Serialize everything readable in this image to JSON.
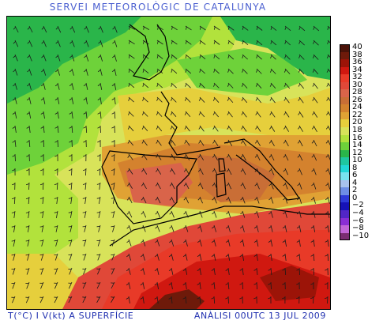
{
  "header": {
    "title": "SERVEI METEOROLÒGIC DE CATALUNYA"
  },
  "footer": {
    "left": "T(°C) I V(kt) A SUPERFÍCIE",
    "right": "ANÀLISI 00UTC 13 JUL 2009"
  },
  "legend": {
    "items": [
      {
        "label": "40",
        "color": "#4a1208"
      },
      {
        "label": "38",
        "color": "#6e1a0a"
      },
      {
        "label": "36",
        "color": "#9c1408"
      },
      {
        "label": "34",
        "color": "#d01810"
      },
      {
        "label": "32",
        "color": "#e83a28"
      },
      {
        "label": "30",
        "color": "#e04838"
      },
      {
        "label": "28",
        "color": "#d9644a"
      },
      {
        "label": "26",
        "color": "#c96e36"
      },
      {
        "label": "24",
        "color": "#d4822e"
      },
      {
        "label": "22",
        "color": "#e0a234"
      },
      {
        "label": "20",
        "color": "#e6cf3c"
      },
      {
        "label": "18",
        "color": "#d8e35a"
      },
      {
        "label": "16",
        "color": "#b2e23c"
      },
      {
        "label": "14",
        "color": "#6ed23a"
      },
      {
        "label": "12",
        "color": "#2ab54a"
      },
      {
        "label": "10",
        "color": "#1fc6a0"
      },
      {
        "label": "8",
        "color": "#22d6d6"
      },
      {
        "label": "6",
        "color": "#78e2ee"
      },
      {
        "label": "4",
        "color": "#a8c2ee"
      },
      {
        "label": "2",
        "color": "#6e8ee6"
      },
      {
        "label": "0",
        "color": "#2e3ad8"
      },
      {
        "label": "−2",
        "color": "#1612b8"
      },
      {
        "label": "−4",
        "color": "#5226c6"
      },
      {
        "label": "−6",
        "color": "#8a2ed4"
      },
      {
        "label": "−8",
        "color": "#c266d8"
      },
      {
        "label": "−10",
        "color": "#7a2c72"
      }
    ]
  },
  "map": {
    "colors": {
      "sea_cool": "#2ab54a",
      "sea_mid": "#6ed23a",
      "land_mild": "#d8e35a",
      "land_warm": "#e0a234",
      "land_hot": "#d9644a",
      "hot_core": "#d01810",
      "hottest": "#6e1a0a",
      "coast": "#000000",
      "barb": "#1a1a1a"
    }
  }
}
